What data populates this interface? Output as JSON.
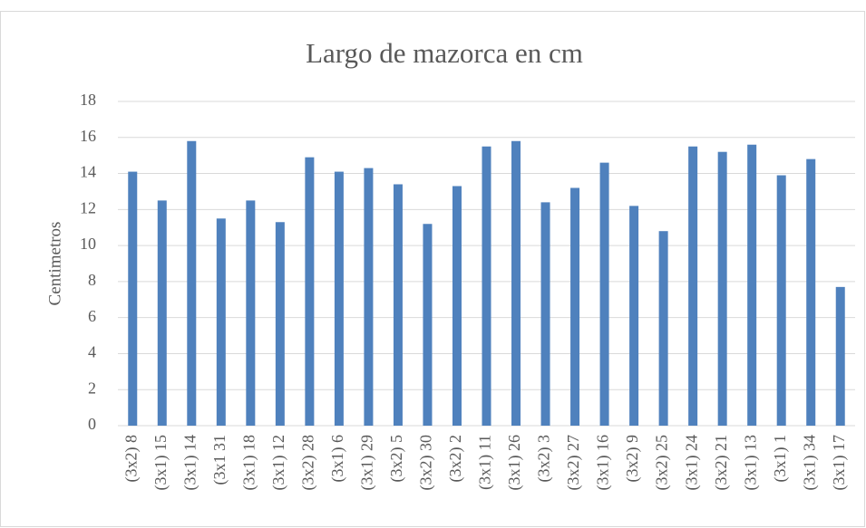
{
  "chart_data": {
    "type": "bar",
    "title": "Largo de mazorca en cm",
    "y_label": "Centimetros",
    "categories": [
      "(3x2) 8",
      "(3x1) 15",
      "(3x1) 14",
      "(3x1 31",
      "(3x1) 18",
      "(3x1) 12",
      "(3x2) 28",
      "(3x1) 6",
      "(3x1) 29",
      "(3x2) 5",
      "(3x2) 30",
      "(3x2) 2",
      "(3x1) 11",
      "(3x1) 26",
      "(3x2) 3",
      "(3x2) 27",
      "(3x1) 16",
      "(3x2) 9",
      "(3x2) 25",
      "(3x1) 24",
      "(3x2) 21",
      "(3x1) 13",
      "(3x1) 1",
      "(3x1) 34",
      "(3x1) 17"
    ],
    "values": [
      14.1,
      12.5,
      15.8,
      11.5,
      12.5,
      11.3,
      14.9,
      14.1,
      14.3,
      13.4,
      11.2,
      13.3,
      15.5,
      15.8,
      12.4,
      13.2,
      14.6,
      12.2,
      10.8,
      15.5,
      15.2,
      15.6,
      13.9,
      14.8,
      7.7
    ],
    "color": "#4f81bd",
    "ylim": [
      0,
      18
    ],
    "yticks": [
      0,
      2,
      4,
      6,
      8,
      10,
      12,
      14,
      16,
      18
    ],
    "grid": true
  }
}
